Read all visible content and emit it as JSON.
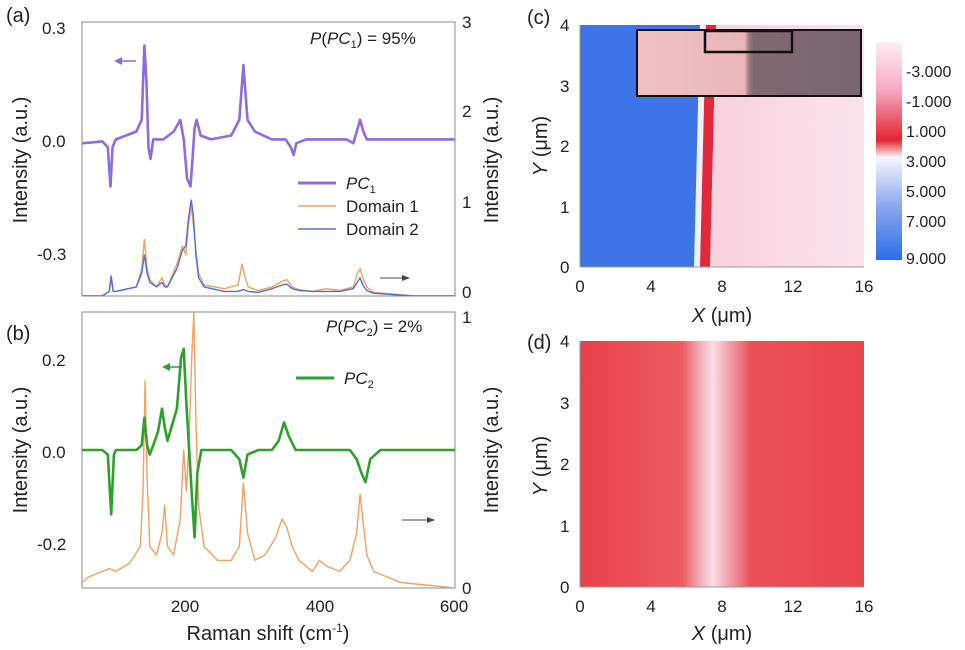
{
  "chart_data": [
    {
      "panel": "(a)",
      "type": "line",
      "annotation": "P(PC1) = 95%",
      "xlabel": "",
      "ylabel": "Intensity (a.u.)",
      "y2label": "Intensity (a.u.)",
      "xlim": [
        50,
        600
      ],
      "ylim": [
        -0.4,
        0.3
      ],
      "y2lim": [
        0,
        3
      ],
      "yticks": [
        "0.3",
        "0.0",
        "-0.3"
      ],
      "y2ticks": [
        "3",
        "2",
        "1",
        "0"
      ],
      "legend": [
        {
          "name": "PC",
          "sub": "1",
          "color": "#8e6be0"
        },
        {
          "name": "Domain 1",
          "color": "#f0a060"
        },
        {
          "name": "Domain 2",
          "color": "#4e6fe0"
        }
      ],
      "series": [
        {
          "name": "PC1",
          "axis": "left",
          "color": "#8e6be0",
          "x": [
            50,
            80,
            88,
            92,
            95,
            100,
            130,
            138,
            142,
            145,
            148,
            151,
            155,
            170,
            185,
            195,
            200,
            205,
            210,
            213,
            216,
            219,
            225,
            240,
            270,
            282,
            288,
            294,
            305,
            330,
            350,
            358,
            362,
            366,
            380,
            420,
            440,
            450,
            455,
            460,
            465,
            470,
            480,
            540,
            600
          ],
          "y": [
            -0.01,
            -0.005,
            -0.02,
            -0.12,
            -0.02,
            0.0,
            0.02,
            0.05,
            0.24,
            0.15,
            -0.02,
            -0.05,
            0.0,
            0.0,
            0.02,
            0.05,
            0.0,
            -0.1,
            -0.12,
            -0.05,
            0.03,
            0.05,
            0.01,
            0.0,
            0.01,
            0.05,
            0.19,
            0.05,
            0.02,
            0.0,
            0.0,
            -0.02,
            -0.04,
            -0.01,
            0.0,
            0.0,
            0.0,
            -0.01,
            0.02,
            0.05,
            0.02,
            0.0,
            0.0,
            0.0,
            0.0
          ]
        },
        {
          "name": "Domain 1",
          "axis": "right",
          "color": "#f0a060",
          "x": [
            50,
            80,
            90,
            93,
            96,
            100,
            130,
            138,
            142,
            146,
            150,
            160,
            168,
            172,
            176,
            190,
            198,
            203,
            207,
            211,
            214,
            218,
            222,
            230,
            260,
            280,
            286,
            290,
            295,
            310,
            330,
            345,
            352,
            360,
            370,
            390,
            410,
            430,
            450,
            456,
            460,
            464,
            470,
            480,
            540,
            600
          ],
          "y": [
            0.0,
            0.0,
            0.05,
            0.17,
            0.05,
            0.05,
            0.1,
            0.3,
            0.62,
            0.3,
            0.18,
            0.1,
            0.2,
            0.12,
            0.1,
            0.35,
            0.55,
            0.45,
            0.78,
            0.98,
            0.8,
            0.5,
            0.25,
            0.12,
            0.08,
            0.12,
            0.35,
            0.22,
            0.1,
            0.06,
            0.1,
            0.16,
            0.18,
            0.1,
            0.07,
            0.05,
            0.08,
            0.06,
            0.1,
            0.25,
            0.3,
            0.2,
            0.1,
            0.04,
            0.0,
            0.0
          ]
        },
        {
          "name": "Domain 2",
          "axis": "right",
          "color": "#4e6fe0",
          "x": [
            50,
            80,
            90,
            93,
            96,
            100,
            130,
            138,
            142,
            146,
            150,
            160,
            168,
            172,
            176,
            190,
            198,
            203,
            207,
            211,
            214,
            218,
            222,
            230,
            260,
            280,
            288,
            295,
            310,
            330,
            345,
            352,
            360,
            370,
            390,
            430,
            450,
            456,
            460,
            464,
            470,
            480,
            540,
            600
          ],
          "y": [
            0.0,
            0.0,
            0.05,
            0.22,
            0.05,
            0.05,
            0.1,
            0.25,
            0.45,
            0.25,
            0.15,
            0.1,
            0.15,
            0.1,
            0.1,
            0.3,
            0.5,
            0.55,
            0.85,
            1.05,
            0.9,
            0.45,
            0.2,
            0.1,
            0.05,
            0.05,
            0.07,
            0.05,
            0.04,
            0.08,
            0.12,
            0.13,
            0.08,
            0.06,
            0.05,
            0.05,
            0.08,
            0.15,
            0.2,
            0.12,
            0.06,
            0.03,
            0.0,
            0.0
          ]
        }
      ]
    },
    {
      "panel": "(b)",
      "type": "line",
      "annotation": "P(PC2) = 2%",
      "xlabel": "Raman shift (cm-1)",
      "ylabel": "Intensity (a.u.)",
      "y2label": "Intensity (a.u.)",
      "xlim": [
        50,
        600
      ],
      "ylim": [
        -0.3,
        0.3
      ],
      "y2lim": [
        0,
        1
      ],
      "xticks": [
        "200",
        "400",
        "600"
      ],
      "yticks": [
        "0.2",
        "0.0",
        "-0.2"
      ],
      "y2ticks": [
        "1",
        "0"
      ],
      "legend": [
        {
          "name": "PC",
          "sub": "2",
          "color": "#2ea02e"
        }
      ],
      "series": [
        {
          "name": "PC2",
          "axis": "left",
          "color": "#2ea02e",
          "x": [
            50,
            80,
            88,
            93,
            97,
            100,
            130,
            138,
            142,
            146,
            150,
            155,
            162,
            168,
            172,
            176,
            190,
            196,
            200,
            204,
            208,
            212,
            216,
            220,
            226,
            240,
            270,
            282,
            288,
            294,
            310,
            330,
            340,
            348,
            355,
            365,
            380,
            420,
            445,
            455,
            462,
            468,
            475,
            490,
            560,
            600
          ],
          "y": [
            0.0,
            0.0,
            -0.01,
            -0.14,
            -0.01,
            0.0,
            0.0,
            0.01,
            0.07,
            0.01,
            -0.01,
            0.01,
            0.04,
            0.09,
            0.05,
            0.02,
            0.09,
            0.2,
            0.22,
            0.1,
            0.0,
            -0.1,
            -0.19,
            -0.05,
            0.0,
            0.0,
            0.0,
            -0.02,
            -0.06,
            -0.01,
            0.0,
            0.0,
            0.02,
            0.06,
            0.03,
            0.0,
            0.0,
            0.0,
            0.0,
            -0.02,
            -0.05,
            -0.07,
            -0.02,
            0.0,
            0.0,
            0.0
          ]
        },
        {
          "name": "Domain 1",
          "axis": "right",
          "color": "#f0a060",
          "x": [
            50,
            60,
            80,
            90,
            100,
            120,
            136,
            140,
            143,
            146,
            150,
            160,
            168,
            172,
            176,
            185,
            195,
            200,
            204,
            208,
            212,
            215,
            218,
            222,
            230,
            250,
            270,
            282,
            288,
            294,
            305,
            320,
            335,
            345,
            352,
            360,
            370,
            390,
            400,
            410,
            430,
            445,
            455,
            460,
            464,
            470,
            480,
            520,
            560,
            600
          ],
          "y": [
            0.02,
            0.04,
            0.06,
            0.07,
            0.06,
            0.09,
            0.15,
            0.35,
            0.75,
            0.4,
            0.15,
            0.12,
            0.2,
            0.3,
            0.15,
            0.12,
            0.25,
            0.5,
            0.35,
            0.55,
            0.85,
            1.0,
            0.6,
            0.3,
            0.15,
            0.1,
            0.1,
            0.15,
            0.38,
            0.2,
            0.1,
            0.12,
            0.18,
            0.25,
            0.22,
            0.15,
            0.1,
            0.06,
            0.1,
            0.08,
            0.06,
            0.1,
            0.2,
            0.34,
            0.25,
            0.12,
            0.06,
            0.02,
            0.01,
            0.0
          ]
        }
      ]
    },
    {
      "panel": "(c)",
      "type": "heatmap",
      "xlabel": "X (μm)",
      "ylabel": "Y (μm)",
      "xlim": [
        0,
        16
      ],
      "ylim": [
        0,
        4
      ],
      "xticks": [
        "0",
        "4",
        "8",
        "12",
        "16"
      ],
      "yticks": [
        "0",
        "1",
        "2",
        "3",
        "4"
      ],
      "colorbar_ticks": [
        "-3.000",
        "-1.000",
        "1.000",
        "3.000",
        "5.000",
        "7.000",
        "9.000"
      ],
      "colorbar_colors": {
        "top": "#fde8ef",
        "mid": "#e8333f",
        "white": "#f4f4fb",
        "bottom": "#2f6ee8"
      },
      "boundary_x": 6.8,
      "left_region_color": "#3f73e6",
      "right_region_color": "#f8dbe6",
      "inset_optical_image": true
    },
    {
      "panel": "(d)",
      "type": "heatmap",
      "xlabel": "X (μm)",
      "ylabel": "Y (μm)",
      "xlim": [
        0,
        16
      ],
      "ylim": [
        0,
        4
      ],
      "xticks": [
        "0",
        "4",
        "8",
        "12",
        "16"
      ],
      "yticks": [
        "0",
        "1",
        "2",
        "3",
        "4"
      ],
      "stripe_center_x": 7.5,
      "base_color": "#e8434a",
      "stripe_color": "#f6d6dc"
    }
  ]
}
